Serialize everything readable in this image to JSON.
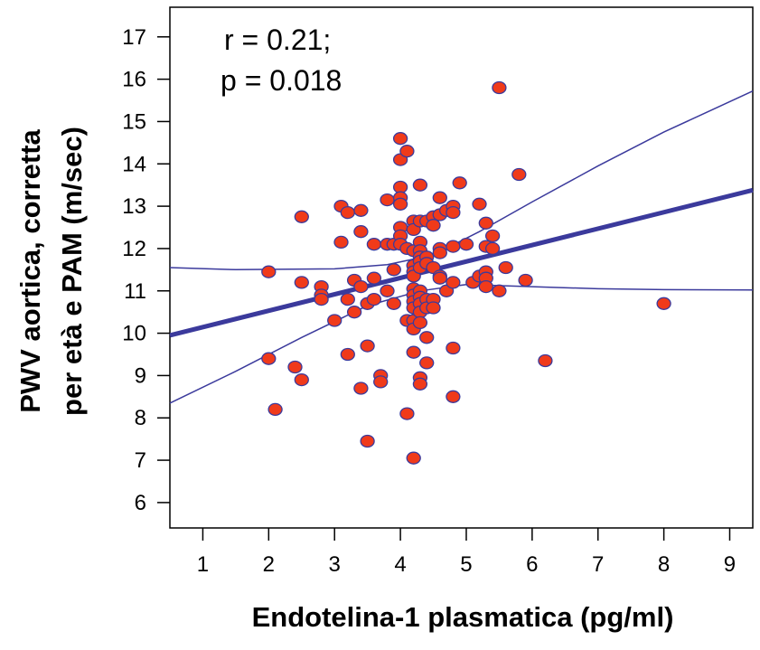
{
  "chart_data": {
    "type": "scatter",
    "title": "",
    "xlabel": "Endotelina-1 plasmatica (pg/ml)",
    "ylabel_lines": [
      "PWV aortica, corretta",
      "per età e PAM (m/sec)"
    ],
    "xlim": [
      0.5,
      9.35
    ],
    "ylim": [
      5.4,
      17.7
    ],
    "x_ticks": [
      1,
      2,
      3,
      4,
      5,
      6,
      7,
      8,
      9
    ],
    "y_ticks": [
      6,
      7,
      8,
      9,
      10,
      11,
      12,
      13,
      14,
      15,
      16,
      17
    ],
    "grid": false,
    "annotations": [
      "r = 0.21;",
      "p = 0.018"
    ],
    "colors": {
      "point_fill": "#f03a1a",
      "point_stroke": "#3b3a9c",
      "line": "#3b3a9c"
    },
    "regression_line": [
      [
        0.5,
        9.95
      ],
      [
        9.35,
        13.38
      ]
    ],
    "ci_upper": [
      [
        0.5,
        11.55
      ],
      [
        1.5,
        11.5
      ],
      [
        3.0,
        11.52
      ],
      [
        3.8,
        11.62
      ],
      [
        4.5,
        11.85
      ],
      [
        5.2,
        12.4
      ],
      [
        6.0,
        13.1
      ],
      [
        7.0,
        13.95
      ],
      [
        8.0,
        14.75
      ],
      [
        9.35,
        15.72
      ]
    ],
    "ci_lower": [
      [
        0.5,
        8.35
      ],
      [
        1.5,
        9.1
      ],
      [
        2.5,
        9.9
      ],
      [
        3.5,
        10.65
      ],
      [
        4.3,
        11.0
      ],
      [
        5.0,
        11.15
      ],
      [
        6.0,
        11.1
      ],
      [
        7.0,
        11.05
      ],
      [
        8.0,
        11.03
      ],
      [
        9.35,
        11.02
      ]
    ],
    "points": [
      [
        2.0,
        11.45
      ],
      [
        2.0,
        9.4
      ],
      [
        2.1,
        8.2
      ],
      [
        2.4,
        9.2
      ],
      [
        2.5,
        8.9
      ],
      [
        2.5,
        11.2
      ],
      [
        2.5,
        12.75
      ],
      [
        2.8,
        11.1
      ],
      [
        2.8,
        10.9
      ],
      [
        2.8,
        10.8
      ],
      [
        3.0,
        10.3
      ],
      [
        3.1,
        13.0
      ],
      [
        3.1,
        12.15
      ],
      [
        3.2,
        12.85
      ],
      [
        3.2,
        10.8
      ],
      [
        3.2,
        9.5
      ],
      [
        3.3,
        11.25
      ],
      [
        3.3,
        10.5
      ],
      [
        3.4,
        12.9
      ],
      [
        3.4,
        12.4
      ],
      [
        3.4,
        11.1
      ],
      [
        3.4,
        8.7
      ],
      [
        3.5,
        10.7
      ],
      [
        3.5,
        9.7
      ],
      [
        3.5,
        7.45
      ],
      [
        3.6,
        12.1
      ],
      [
        3.6,
        11.3
      ],
      [
        3.6,
        10.8
      ],
      [
        3.7,
        9.0
      ],
      [
        3.7,
        8.85
      ],
      [
        3.8,
        13.15
      ],
      [
        3.8,
        12.1
      ],
      [
        3.8,
        11.0
      ],
      [
        3.9,
        12.1
      ],
      [
        3.9,
        11.5
      ],
      [
        3.9,
        10.7
      ],
      [
        4.0,
        14.6
      ],
      [
        4.0,
        14.1
      ],
      [
        4.0,
        13.45
      ],
      [
        4.0,
        13.2
      ],
      [
        4.0,
        13.05
      ],
      [
        4.0,
        12.5
      ],
      [
        4.0,
        12.3
      ],
      [
        4.0,
        12.1
      ],
      [
        4.1,
        14.3
      ],
      [
        4.1,
        12.0
      ],
      [
        4.1,
        10.3
      ],
      [
        4.1,
        8.1
      ],
      [
        4.2,
        12.65
      ],
      [
        4.2,
        12.45
      ],
      [
        4.2,
        11.95
      ],
      [
        4.2,
        11.6
      ],
      [
        4.2,
        11.45
      ],
      [
        4.2,
        11.35
      ],
      [
        4.2,
        11.05
      ],
      [
        4.2,
        10.9
      ],
      [
        4.2,
        10.75
      ],
      [
        4.2,
        10.6
      ],
      [
        4.2,
        10.3
      ],
      [
        4.2,
        10.1
      ],
      [
        4.2,
        9.55
      ],
      [
        4.2,
        7.05
      ],
      [
        4.3,
        13.5
      ],
      [
        4.3,
        12.65
      ],
      [
        4.3,
        12.15
      ],
      [
        4.3,
        11.95
      ],
      [
        4.3,
        11.8
      ],
      [
        4.3,
        11.7
      ],
      [
        4.3,
        11.55
      ],
      [
        4.3,
        11.0
      ],
      [
        4.3,
        10.85
      ],
      [
        4.3,
        10.7
      ],
      [
        4.3,
        10.5
      ],
      [
        4.3,
        10.25
      ],
      [
        4.3,
        8.95
      ],
      [
        4.3,
        8.8
      ],
      [
        4.4,
        12.65
      ],
      [
        4.4,
        11.8
      ],
      [
        4.4,
        11.65
      ],
      [
        4.4,
        10.8
      ],
      [
        4.4,
        10.6
      ],
      [
        4.4,
        9.9
      ],
      [
        4.4,
        9.3
      ],
      [
        4.5,
        12.75
      ],
      [
        4.5,
        12.55
      ],
      [
        4.5,
        11.55
      ],
      [
        4.5,
        10.8
      ],
      [
        4.5,
        10.6
      ],
      [
        4.6,
        13.2
      ],
      [
        4.6,
        12.8
      ],
      [
        4.6,
        12.0
      ],
      [
        4.6,
        11.9
      ],
      [
        4.6,
        11.35
      ],
      [
        4.6,
        11.3
      ],
      [
        4.7,
        12.9
      ],
      [
        4.7,
        11.0
      ],
      [
        4.8,
        13.0
      ],
      [
        4.8,
        12.85
      ],
      [
        4.8,
        12.05
      ],
      [
        4.8,
        11.2
      ],
      [
        4.8,
        9.65
      ],
      [
        4.8,
        8.5
      ],
      [
        4.9,
        13.55
      ],
      [
        5.0,
        12.1
      ],
      [
        5.1,
        11.2
      ],
      [
        5.2,
        13.05
      ],
      [
        5.2,
        11.35
      ],
      [
        5.3,
        12.6
      ],
      [
        5.3,
        12.05
      ],
      [
        5.3,
        11.45
      ],
      [
        5.3,
        11.3
      ],
      [
        5.3,
        11.1
      ],
      [
        5.4,
        12.3
      ],
      [
        5.4,
        12.0
      ],
      [
        5.5,
        15.8
      ],
      [
        5.5,
        11.0
      ],
      [
        5.6,
        11.55
      ],
      [
        5.8,
        13.75
      ],
      [
        5.9,
        11.25
      ],
      [
        6.2,
        9.35
      ],
      [
        8.0,
        10.7
      ]
    ]
  }
}
